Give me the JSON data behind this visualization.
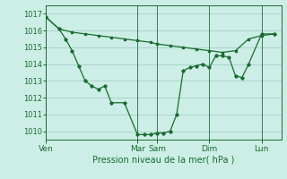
{
  "xlabel": "Pression niveau de la mer( hPa )",
  "bg_color": "#cceee6",
  "grid_color": "#aad4cc",
  "line_color": "#1a6b30",
  "ylim": [
    1009.5,
    1017.5
  ],
  "yticks": [
    1010,
    1011,
    1012,
    1013,
    1014,
    1015,
    1016,
    1017
  ],
  "xtick_labels": [
    "Ven",
    "Mar",
    "Sam",
    "Dim",
    "Lun"
  ],
  "xtick_positions": [
    0,
    14,
    17,
    25,
    33
  ],
  "xlim": [
    0,
    36
  ],
  "line1_x": [
    0,
    2,
    4,
    6,
    8,
    10,
    12,
    14,
    16,
    17,
    19,
    21,
    23,
    25,
    27,
    29,
    31,
    33,
    35
  ],
  "line1_y": [
    1016.8,
    1016.1,
    1015.9,
    1015.8,
    1015.7,
    1015.6,
    1015.5,
    1015.4,
    1015.3,
    1015.2,
    1015.1,
    1015.0,
    1014.9,
    1014.8,
    1014.7,
    1014.8,
    1015.5,
    1015.7,
    1015.8
  ],
  "line2_x": [
    0,
    2,
    3,
    4,
    5,
    6,
    7,
    8,
    9,
    10,
    12,
    14,
    15,
    16,
    17,
    18,
    19,
    20,
    21,
    22,
    23,
    24,
    25,
    26,
    27,
    28,
    29,
    30,
    31,
    33,
    35
  ],
  "line2_y": [
    1016.8,
    1016.1,
    1015.5,
    1014.8,
    1013.9,
    1013.0,
    1012.7,
    1012.5,
    1012.7,
    1011.7,
    1011.7,
    1009.8,
    1009.8,
    1009.8,
    1009.9,
    1009.9,
    1010.0,
    1011.0,
    1013.6,
    1013.8,
    1013.9,
    1014.0,
    1013.8,
    1014.5,
    1014.5,
    1014.4,
    1013.3,
    1013.2,
    1014.0,
    1015.8,
    1015.8
  ],
  "vline_positions": [
    0,
    14,
    17,
    25,
    33
  ],
  "ytick_fontsize": 6,
  "xtick_fontsize": 6.5,
  "xlabel_fontsize": 7
}
